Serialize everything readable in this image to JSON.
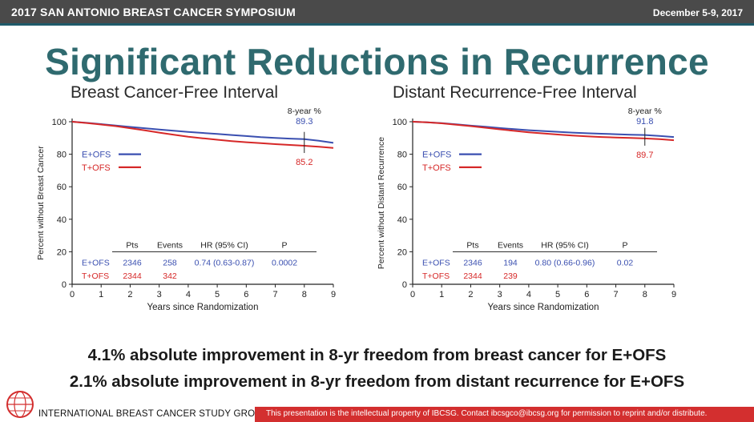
{
  "header": {
    "conference": "2017 SAN ANTONIO BREAST CANCER SYMPOSIUM",
    "date": "December 5-9, 2017"
  },
  "slide_title": "Significant Reductions in Recurrence",
  "colors": {
    "eofs": "#3a4fb0",
    "tofs": "#d62828",
    "title": "#2f6a6f",
    "footer_red": "#d32f2f"
  },
  "chart_data": [
    {
      "type": "line",
      "title": "Breast Cancer-Free Interval",
      "xlabel": "Years since Randomization",
      "ylabel": "Percent without Breast Cancer",
      "xlim": [
        0,
        9
      ],
      "ylim": [
        0,
        100
      ],
      "xticks": [
        0,
        1,
        2,
        3,
        4,
        5,
        6,
        7,
        8,
        9
      ],
      "yticks": [
        0,
        20,
        40,
        60,
        80,
        100
      ],
      "grid": false,
      "legend_position": "upper-left",
      "series": [
        {
          "name": "E+OFS",
          "color": "#3a4fb0",
          "x": [
            0,
            0.5,
            1,
            1.5,
            2,
            2.5,
            3,
            3.5,
            4,
            4.5,
            5,
            5.5,
            6,
            6.5,
            7,
            7.5,
            8,
            8.5,
            9
          ],
          "y": [
            100,
            99.3,
            98.5,
            97.7,
            96.8,
            96.0,
            95.2,
            94.5,
            93.7,
            93.1,
            92.5,
            91.8,
            91.2,
            90.5,
            90.0,
            89.6,
            89.3,
            88.3,
            87.0
          ]
        },
        {
          "name": "T+OFS",
          "color": "#d62828",
          "x": [
            0,
            0.5,
            1,
            1.5,
            2,
            2.5,
            3,
            3.5,
            4,
            4.5,
            5,
            5.5,
            6,
            6.5,
            7,
            7.5,
            8,
            8.5,
            9
          ],
          "y": [
            100,
            99.2,
            98.3,
            97.3,
            96.0,
            94.7,
            93.3,
            92.0,
            90.8,
            89.8,
            88.9,
            88.1,
            87.4,
            86.8,
            86.2,
            85.7,
            85.2,
            84.6,
            83.9
          ]
        }
      ],
      "annotation": {
        "label": "8-year %",
        "x": 8,
        "eofs": "89.3",
        "tofs": "85.2"
      },
      "table": {
        "headers": [
          "Pts",
          "Events",
          "HR (95% CI)",
          "P"
        ],
        "rows": [
          {
            "label": "E+OFS",
            "pts": "2346",
            "events": "258",
            "hr": "0.74 (0.63-0.87)",
            "p": "0.0002"
          },
          {
            "label": "T+OFS",
            "pts": "2344",
            "events": "342",
            "hr": "",
            "p": ""
          }
        ]
      }
    },
    {
      "type": "line",
      "title": "Distant Recurrence-Free Interval",
      "xlabel": "Years since Randomization",
      "ylabel": "Percent without Distant Recurrence",
      "xlim": [
        0,
        9
      ],
      "ylim": [
        0,
        100
      ],
      "xticks": [
        0,
        1,
        2,
        3,
        4,
        5,
        6,
        7,
        8,
        9
      ],
      "yticks": [
        0,
        20,
        40,
        60,
        80,
        100
      ],
      "grid": false,
      "legend_position": "upper-left",
      "series": [
        {
          "name": "E+OFS",
          "color": "#3a4fb0",
          "x": [
            0,
            0.5,
            1,
            1.5,
            2,
            2.5,
            3,
            3.5,
            4,
            4.5,
            5,
            5.5,
            6,
            6.5,
            7,
            7.5,
            8,
            8.5,
            9
          ],
          "y": [
            100,
            99.6,
            99.1,
            98.4,
            97.6,
            96.9,
            96.1,
            95.4,
            94.8,
            94.3,
            93.8,
            93.3,
            92.9,
            92.6,
            92.3,
            92.0,
            91.8,
            91.3,
            90.6
          ]
        },
        {
          "name": "T+OFS",
          "color": "#d62828",
          "x": [
            0,
            0.5,
            1,
            1.5,
            2,
            2.5,
            3,
            3.5,
            4,
            4.5,
            5,
            5.5,
            6,
            6.5,
            7,
            7.5,
            8,
            8.5,
            9
          ],
          "y": [
            100,
            99.6,
            99.0,
            98.2,
            97.3,
            96.3,
            95.3,
            94.4,
            93.5,
            92.8,
            92.1,
            91.5,
            91.0,
            90.6,
            90.3,
            90.0,
            89.7,
            89.3,
            88.6
          ]
        }
      ],
      "annotation": {
        "label": "8-year %",
        "x": 8,
        "eofs": "91.8",
        "tofs": "89.7"
      },
      "table": {
        "headers": [
          "Pts",
          "Events",
          "HR (95% CI)",
          "P"
        ],
        "rows": [
          {
            "label": "E+OFS",
            "pts": "2346",
            "events": "194",
            "hr": "0.80 (0.66-0.96)",
            "p": "0.02"
          },
          {
            "label": "T+OFS",
            "pts": "2344",
            "events": "239",
            "hr": "",
            "p": ""
          }
        ]
      }
    }
  ],
  "conclusions": [
    "4.1% absolute improvement in 8-yr freedom from breast cancer for E+OFS",
    "2.1% absolute improvement in 8-yr freedom from distant recurrence for E+OFS"
  ],
  "footer": {
    "org": "INTERNATIONAL BREAST CANCER STUDY GROUP",
    "notice": "This presentation is the intellectual property of IBCSG. Contact ibcsgco@ibcsg.org for permission to reprint and/or distribute."
  }
}
